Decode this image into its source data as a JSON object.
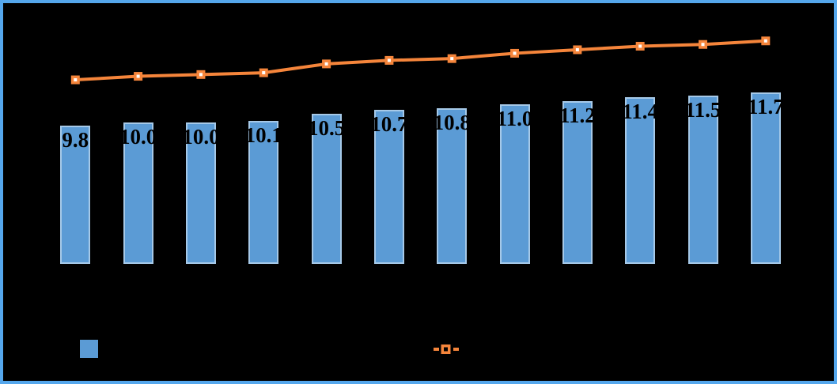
{
  "chart_data": {
    "type": "combo",
    "point_count": 12,
    "series": [
      {
        "name": "bar-series",
        "type": "bar",
        "values": [
          9.8,
          10.0,
          10.0,
          10.1,
          10.5,
          10.7,
          10.8,
          11.0,
          11.2,
          11.4,
          11.5,
          11.7
        ],
        "data_labels": [
          "9.8",
          "10.0",
          "10.0",
          "10.1",
          "10.5",
          "10.7",
          "10.8",
          "11.0",
          "11.2",
          "11.4",
          "11.5",
          "11.7"
        ]
      },
      {
        "name": "line-series",
        "type": "line",
        "marker": "square",
        "values_estimated": [
          12.4,
          12.6,
          12.7,
          12.8,
          13.3,
          13.5,
          13.6,
          13.9,
          14.1,
          14.3,
          14.4,
          14.6
        ]
      }
    ],
    "title": "",
    "xlabel": "",
    "ylabel": "",
    "ylim": [
      2,
      16
    ],
    "grid": false,
    "axis_tick_labels_visible": false,
    "legend_position": "bottom",
    "legend_items": [
      {
        "swatch": "bar-square",
        "label": ""
      },
      {
        "swatch": "line-with-square-marker",
        "label": ""
      }
    ]
  },
  "colors": {
    "background": "#000000",
    "frame_border": "#55A7EC",
    "bar_fill": "#5B9BD5",
    "bar_border": "#A6C9E8",
    "line": "#F5853B",
    "marker_fill": "#FFFFFF",
    "data_label": "#000000"
  }
}
